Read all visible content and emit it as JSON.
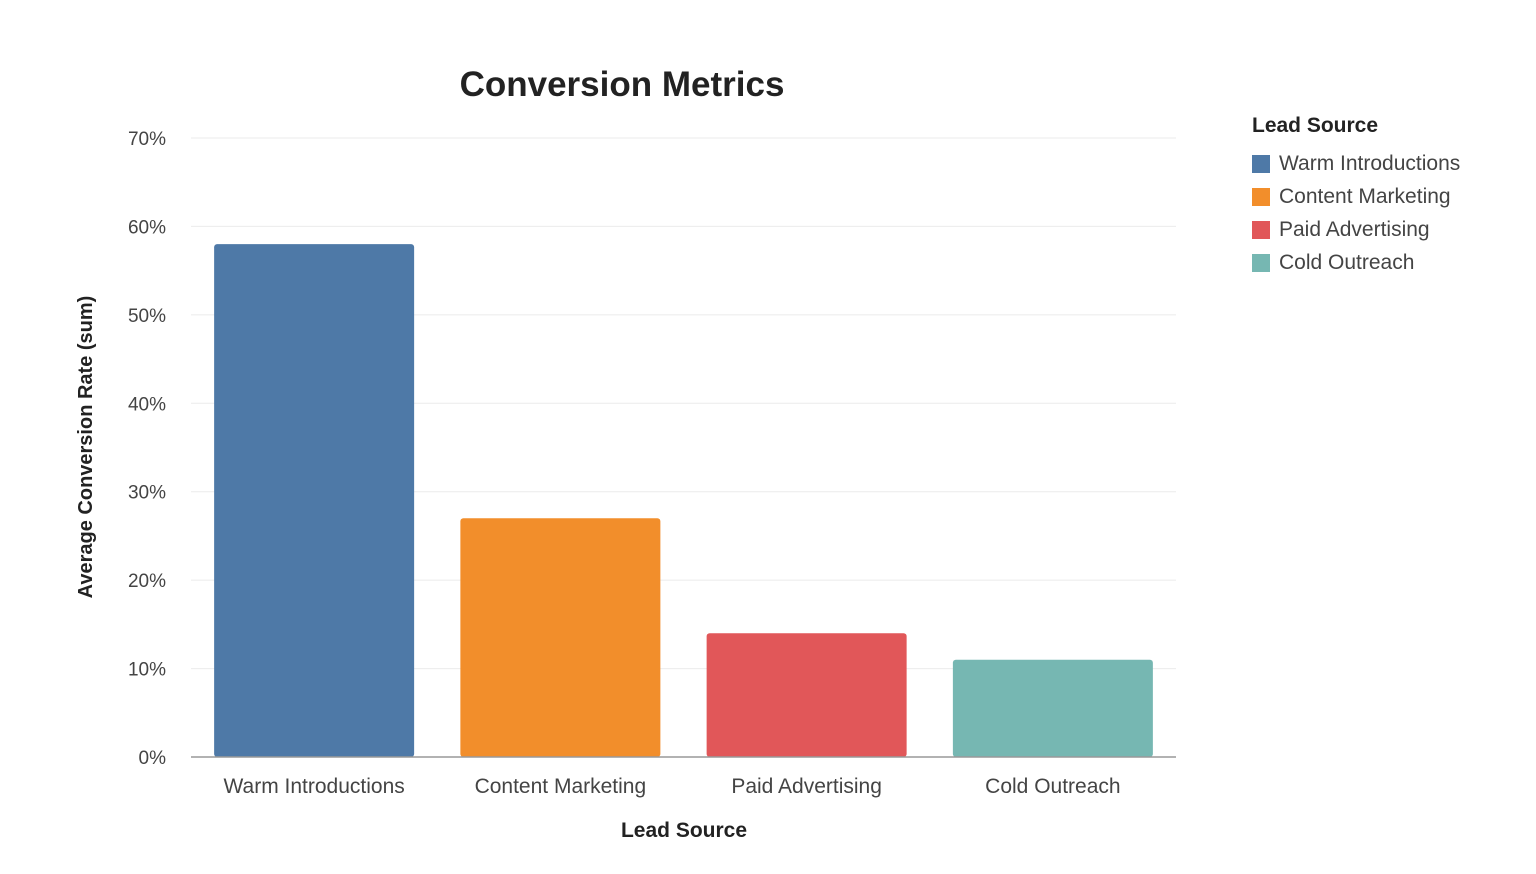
{
  "chart_data": {
    "type": "bar",
    "title": "Conversion Metrics",
    "xlabel": "Lead Source",
    "ylabel": "Average Conversion Rate (sum)",
    "categories": [
      "Warm Introductions",
      "Content Marketing",
      "Paid Advertising",
      "Cold Outreach"
    ],
    "values": [
      58,
      27,
      14,
      11
    ],
    "colors": [
      "#4e79a7",
      "#f28e2b",
      "#e15759",
      "#76b7b2"
    ],
    "ylim": [
      0,
      70
    ],
    "yticks": [
      "0%",
      "10%",
      "20%",
      "30%",
      "40%",
      "50%",
      "60%",
      "70%"
    ],
    "grid": true,
    "legend": {
      "title": "Lead Source",
      "placement": "right",
      "items": [
        "Warm Introductions",
        "Content Marketing",
        "Paid Advertising",
        "Cold Outreach"
      ]
    }
  }
}
